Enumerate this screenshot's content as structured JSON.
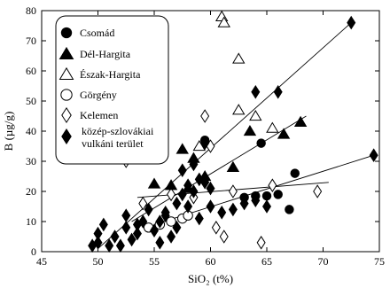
{
  "chart_data": {
    "type": "scatter",
    "title": "",
    "xlabel": "SiO₂ (t%)",
    "ylabel": "B (µg/g)",
    "xlim": [
      45,
      75
    ],
    "ylim": [
      0,
      80
    ],
    "xticks": [
      45,
      50,
      55,
      60,
      65,
      70,
      75
    ],
    "yticks": [
      0,
      10,
      20,
      30,
      40,
      50,
      60,
      70,
      80
    ],
    "legend_position": "top-left",
    "series": [
      {
        "name": "Csomád",
        "marker": "circle-filled",
        "points": [
          [
            59.5,
            37
          ],
          [
            64.5,
            36
          ],
          [
            67.5,
            26
          ],
          [
            63,
            18
          ],
          [
            64,
            18.5
          ],
          [
            65,
            18.5
          ],
          [
            66,
            19
          ],
          [
            67,
            14
          ]
        ]
      },
      {
        "name": "Dél-Hargita",
        "marker": "triangle-filled",
        "points": [
          [
            57.5,
            34
          ],
          [
            56.5,
            22
          ],
          [
            58,
            21
          ],
          [
            59.5,
            25
          ],
          [
            62,
            28
          ],
          [
            63.5,
            40
          ],
          [
            66.5,
            39
          ],
          [
            68,
            43
          ],
          [
            55,
            22.5
          ],
          [
            58.5,
            31
          ]
        ]
      },
      {
        "name": "Észak-Hargita",
        "marker": "triangle-open",
        "points": [
          [
            61,
            78
          ],
          [
            61.2,
            76
          ],
          [
            62.5,
            64
          ],
          [
            62.5,
            47
          ],
          [
            64,
            45
          ],
          [
            65.5,
            41
          ],
          [
            59,
            35
          ]
        ]
      },
      {
        "name": "Görgény",
        "marker": "circle-open",
        "points": [
          [
            56.5,
            10
          ],
          [
            57.5,
            11
          ],
          [
            58,
            12
          ],
          [
            55.5,
            9
          ],
          [
            54.5,
            8
          ]
        ]
      },
      {
        "name": "Kelemen",
        "marker": "diamond-open",
        "points": [
          [
            52.5,
            30
          ],
          [
            59.5,
            45
          ],
          [
            60.5,
            8
          ],
          [
            61.2,
            5
          ],
          [
            56.5,
            19
          ],
          [
            58.5,
            18
          ],
          [
            62,
            20
          ],
          [
            65.5,
            22
          ],
          [
            69.5,
            20
          ],
          [
            64.5,
            3
          ],
          [
            60,
            35
          ],
          [
            54,
            16
          ]
        ]
      },
      {
        "name": "közép-szlovákiai vulkáni terület",
        "marker": "diamond-filled",
        "points": [
          [
            72.5,
            76
          ],
          [
            66,
            53
          ],
          [
            64,
            53
          ],
          [
            74.5,
            32
          ],
          [
            49.5,
            2
          ],
          [
            50,
            3
          ],
          [
            50.5,
            9
          ],
          [
            51.5,
            5
          ],
          [
            52,
            2
          ],
          [
            52.5,
            8
          ],
          [
            53,
            4
          ],
          [
            53.5,
            6
          ],
          [
            54,
            10
          ],
          [
            54.5,
            14
          ],
          [
            55,
            7
          ],
          [
            55.5,
            10
          ],
          [
            56,
            12
          ],
          [
            56.5,
            5
          ],
          [
            57,
            16
          ],
          [
            57.5,
            19
          ],
          [
            58,
            22
          ],
          [
            58.5,
            20
          ],
          [
            59,
            24
          ],
          [
            59.5,
            23
          ],
          [
            60,
            21
          ],
          [
            56,
            13
          ],
          [
            57,
            8
          ],
          [
            58,
            15
          ],
          [
            59,
            11
          ],
          [
            60,
            15
          ],
          [
            61,
            13
          ],
          [
            62,
            14
          ],
          [
            63,
            16
          ],
          [
            64,
            17
          ],
          [
            65,
            15
          ],
          [
            50,
            6
          ],
          [
            51,
            2
          ],
          [
            52.5,
            12
          ],
          [
            53.5,
            9
          ],
          [
            55.5,
            3
          ],
          [
            57.5,
            27
          ],
          [
            58.5,
            29
          ],
          [
            59.5,
            36
          ]
        ]
      }
    ],
    "trend_lines": [
      [
        [
          50,
          1
        ],
        [
          72.5,
          76
        ]
      ],
      [
        [
          53,
          10
        ],
        [
          68.5,
          45
        ]
      ],
      [
        [
          55,
          9
        ],
        [
          74.5,
          32
        ]
      ],
      [
        [
          53.5,
          18
        ],
        [
          70.5,
          23
        ]
      ]
    ]
  }
}
